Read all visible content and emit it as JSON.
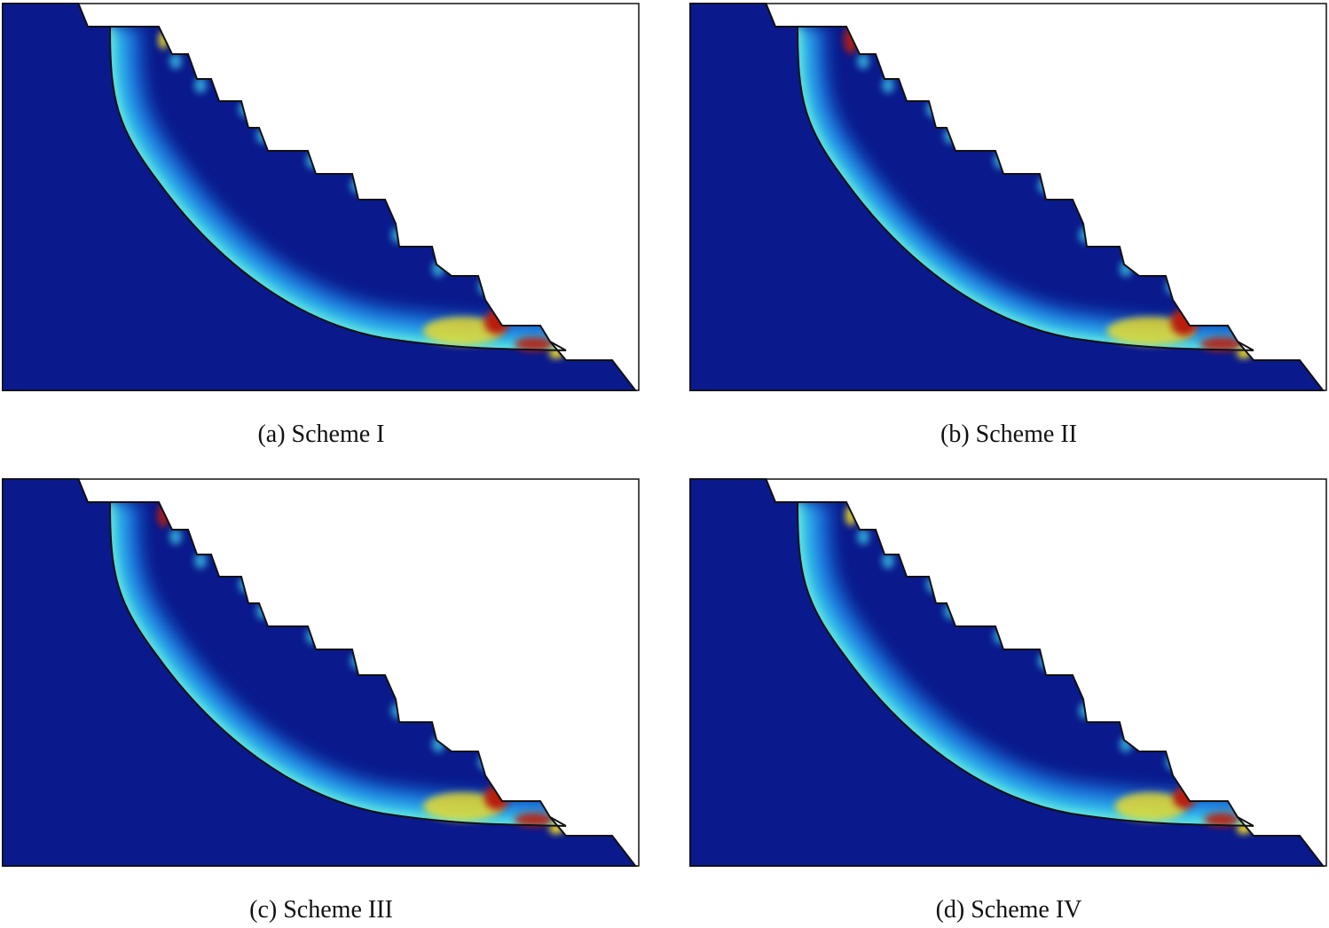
{
  "panels": [
    {
      "caption": "(a) Scheme I"
    },
    {
      "caption": "(b) Scheme II"
    },
    {
      "caption": "(c) Scheme III"
    },
    {
      "caption": "(d) Scheme IV"
    }
  ],
  "colors": {
    "background_field": "#0a1a8c",
    "band_mid": "#1f7fe8",
    "band_light": "#3fd9f2",
    "hot_yellow": "#f4e024",
    "hot_red": "#b81d0c",
    "outline": "#111111"
  }
}
